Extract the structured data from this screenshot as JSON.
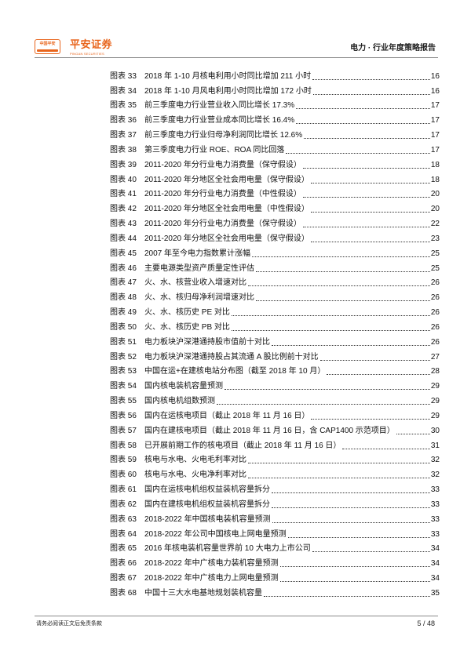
{
  "header": {
    "logo_text": "中国平安",
    "brand": "平安证券",
    "brand_en": "PINGAN SECURITIES",
    "doc_title": "电力 · 行业年度策略报告"
  },
  "toc": [
    {
      "label": "图表 33",
      "title": "2018 年 1-10 月核电利用小时同比增加 211 小时",
      "page": "16"
    },
    {
      "label": "图表 34",
      "title": "2018 年 1-10 月风电利用小时同比增加 172 小时",
      "page": "16"
    },
    {
      "label": "图表 35",
      "title": "前三季度电力行业营业收入同比增长 17.3%",
      "page": "17"
    },
    {
      "label": "图表 36",
      "title": "前三季度电力行业营业成本同比增长 16.4%",
      "page": "17"
    },
    {
      "label": "图表 37",
      "title": "前三季度电力行业归母净利润同比增长 12.6%",
      "page": "17"
    },
    {
      "label": "图表 38",
      "title": "第三季度电力行业 ROE、ROA 同比回落",
      "page": "17"
    },
    {
      "label": "图表 39",
      "title": "2011-2020 年分行业电力消费量（保守假设）",
      "page": "18"
    },
    {
      "label": "图表 40",
      "title": "2011-2020 年分地区全社会用电量（保守假设）",
      "page": "18"
    },
    {
      "label": "图表 41",
      "title": "2011-2020 年分行业电力消费量（中性假设）",
      "page": "20"
    },
    {
      "label": "图表 42",
      "title": "2011-2020 年分地区全社会用电量（中性假设）",
      "page": "20"
    },
    {
      "label": "图表 43",
      "title": "2011-2020 年分行业电力消费量（保守假设）",
      "page": "22"
    },
    {
      "label": "图表 44",
      "title": "2011-2020 年分地区全社会用电量（保守假设）",
      "page": "23"
    },
    {
      "label": "图表 45",
      "title": "2007 年至今电力指数累计涨幅",
      "page": "25"
    },
    {
      "label": "图表 46",
      "title": "主要电源类型资产质量定性评估",
      "page": "25"
    },
    {
      "label": "图表 47",
      "title": "火、水、核营业收入增速对比",
      "page": "26"
    },
    {
      "label": "图表 48",
      "title": "火、水、核归母净利润增速对比",
      "page": "26"
    },
    {
      "label": "图表 49",
      "title": "火、水、核历史 PE 对比",
      "page": "26"
    },
    {
      "label": "图表 50",
      "title": "火、水、核历史 PB 对比",
      "page": "26"
    },
    {
      "label": "图表 51",
      "title": "电力板块沪深港通持股市值前十对比",
      "page": "26"
    },
    {
      "label": "图表 52",
      "title": "电力板块沪深港通持股占其流通 A 股比例前十对比",
      "page": "27"
    },
    {
      "label": "图表 53",
      "title": "中国在运+在建核电站分布图（截至 2018 年 10 月）",
      "page": "28"
    },
    {
      "label": "图表 54",
      "title": "国内核电装机容量预测",
      "page": "29"
    },
    {
      "label": "图表 55",
      "title": "国内核电机组数预测",
      "page": "29"
    },
    {
      "label": "图表 56",
      "title": "国内在运核电项目（截止 2018 年 11 月 16 日）",
      "page": "29"
    },
    {
      "label": "图表 57",
      "title": "国内在建核电项目（截止 2018 年 11 月 16 日，含 CAP1400 示范项目）",
      "page": "30"
    },
    {
      "label": "图表 58",
      "title": "已开展前期工作的核电项目（截止 2018 年 11 月 16 日）",
      "page": "31"
    },
    {
      "label": "图表 59",
      "title": "核电与水电、火电毛利率对比",
      "page": "32"
    },
    {
      "label": "图表 60",
      "title": "核电与水电、火电净利率对比",
      "page": "32"
    },
    {
      "label": "图表 61",
      "title": "国内在运核电机组权益装机容量拆分",
      "page": "33"
    },
    {
      "label": "图表 62",
      "title": "国内在建核电机组权益装机容量拆分",
      "page": "33"
    },
    {
      "label": "图表 63",
      "title": "2018-2022 年中国核电装机容量预测",
      "page": "33"
    },
    {
      "label": "图表 64",
      "title": "2018-2022 年公司中国核电上网电量预测",
      "page": "33"
    },
    {
      "label": "图表 65",
      "title": "2016 年核电装机容量世界前 10 大电力上市公司",
      "page": "34"
    },
    {
      "label": "图表 66",
      "title": "2018-2022 年中广核电力装机容量预测",
      "page": "34"
    },
    {
      "label": "图表 67",
      "title": "2018-2022 年中广核电力上网电量预测",
      "page": "34"
    },
    {
      "label": "图表 68",
      "title": "中国十三大水电基地规划装机容量",
      "page": "35"
    }
  ],
  "footer": {
    "disclaimer": "请务必阅读正文后免责条款",
    "page_number": "5 / 48"
  }
}
